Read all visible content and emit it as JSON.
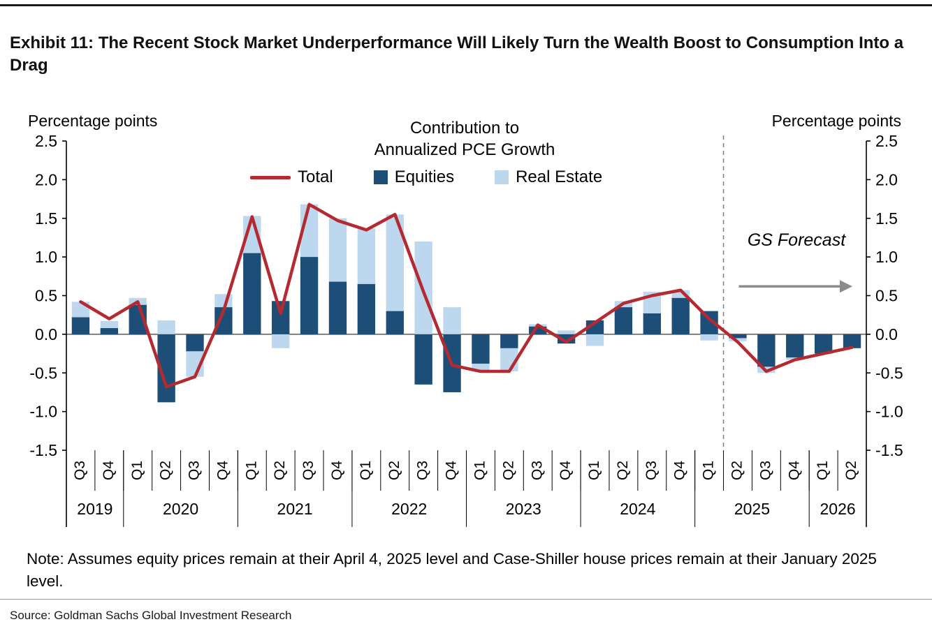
{
  "exhibit": {
    "title": "Exhibit 11: The Recent Stock Market Underperformance Will Likely Turn the Wealth Boost to Consumption Into a Drag",
    "note": "Note: Assumes equity prices remain at their April 4, 2025 level and Case-Shiller house prices remain at their January 2025 level.",
    "source": "Source: Goldman Sachs Global Investment Research"
  },
  "chart_data": {
    "type": "bar",
    "title_line1": "Contribution to",
    "title_line2": "Annualized PCE Growth",
    "left_axis_label": "Percentage points",
    "right_axis_label": "Percentage points",
    "forecast_label": "GS Forecast",
    "ylim": [
      -1.5,
      2.5
    ],
    "ytick_step": 0.5,
    "grid": false,
    "legend_position": "top",
    "quarters": [
      "Q3",
      "Q4",
      "Q1",
      "Q2",
      "Q3",
      "Q4",
      "Q1",
      "Q2",
      "Q3",
      "Q4",
      "Q1",
      "Q2",
      "Q3",
      "Q4",
      "Q1",
      "Q2",
      "Q3",
      "Q4",
      "Q1",
      "Q2",
      "Q3",
      "Q4",
      "Q1",
      "Q2",
      "Q3",
      "Q4",
      "Q1",
      "Q2"
    ],
    "years": [
      {
        "label": "2019",
        "count": 2
      },
      {
        "label": "2020",
        "count": 4
      },
      {
        "label": "2021",
        "count": 4
      },
      {
        "label": "2022",
        "count": 4
      },
      {
        "label": "2023",
        "count": 4
      },
      {
        "label": "2024",
        "count": 4
      },
      {
        "label": "2025",
        "count": 4
      },
      {
        "label": "2026",
        "count": 2
      }
    ],
    "series": {
      "equities": {
        "name": "Equities",
        "type": "bar",
        "color": "#1d4e77",
        "values": [
          0.22,
          0.08,
          0.38,
          -0.88,
          -0.22,
          0.35,
          1.05,
          0.43,
          1.0,
          0.68,
          0.65,
          0.3,
          -0.65,
          -0.75,
          -0.38,
          -0.18,
          0.1,
          -0.12,
          0.18,
          0.35,
          0.27,
          0.47,
          0.3,
          -0.05,
          -0.42,
          -0.3,
          -0.25,
          -0.18
        ]
      },
      "real_estate": {
        "name": "Real Estate",
        "type": "bar",
        "color": "#bdd7ee",
        "values": [
          0.2,
          0.09,
          0.09,
          0.18,
          -0.33,
          0.17,
          0.48,
          -0.18,
          0.68,
          0.82,
          0.72,
          1.25,
          1.2,
          0.35,
          -0.1,
          -0.3,
          0.03,
          0.05,
          -0.15,
          0.08,
          0.28,
          0.1,
          -0.08,
          -0.04,
          -0.08,
          -0.03,
          0.0,
          0.0
        ]
      },
      "total": {
        "name": "Total",
        "type": "line",
        "color": "#b52a30",
        "values": [
          0.42,
          0.2,
          0.42,
          -0.68,
          -0.55,
          0.3,
          1.52,
          0.27,
          1.68,
          1.47,
          1.35,
          1.55,
          0.55,
          -0.4,
          -0.48,
          -0.48,
          0.12,
          -0.1,
          0.15,
          0.4,
          0.5,
          0.57,
          0.2,
          -0.1,
          -0.48,
          -0.33,
          -0.25,
          -0.17
        ]
      }
    },
    "forecast_divider_after_index": 22,
    "colors": {
      "axis": "#000000",
      "zero_line": "#7f7f7f",
      "forecast_divider": "#7f7f7f",
      "arrow": "#8c8c8c"
    }
  }
}
